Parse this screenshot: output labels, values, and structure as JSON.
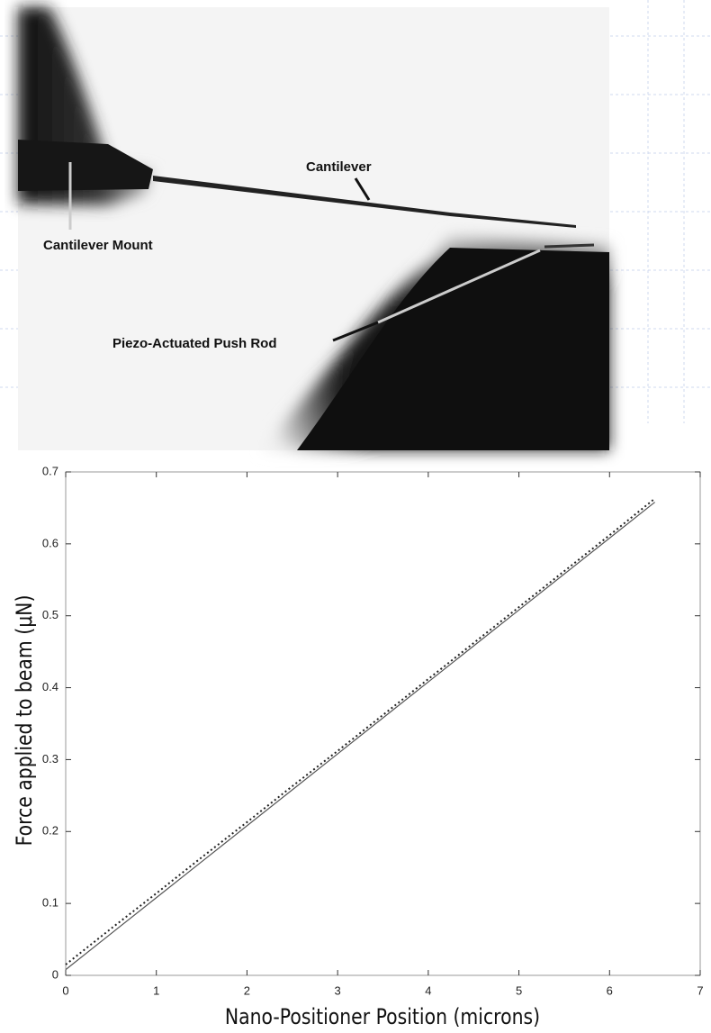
{
  "image": {
    "labels": [
      "Cantilever",
      "Cantilever Mount",
      "Piezo-Actuated Push Rod"
    ]
  },
  "chart_data": {
    "type": "line",
    "x_label": "Nano-Positioner Position (microns)",
    "y_label": "Force applied to beam (μN)",
    "x": [
      0,
      0.5,
      1,
      1.5,
      2,
      2.5,
      3,
      3.5,
      4,
      4.5,
      5,
      5.5,
      6,
      6.5
    ],
    "series": [
      {
        "color": "#222222",
        "style": "dotted",
        "values": [
          0.015,
          0.065,
          0.114,
          0.164,
          0.213,
          0.263,
          0.312,
          0.362,
          0.412,
          0.462,
          0.512,
          0.562,
          0.612,
          0.663
        ]
      },
      {
        "color": "#555555",
        "style": "solid",
        "values": [
          0.008,
          0.058,
          0.108,
          0.158,
          0.208,
          0.258,
          0.308,
          0.358,
          0.408,
          0.458,
          0.508,
          0.558,
          0.608,
          0.658
        ]
      }
    ],
    "xlim": [
      0,
      7
    ],
    "xticks": [
      0,
      1,
      2,
      3,
      4,
      5,
      6,
      7
    ],
    "ylim": [
      0,
      0.7
    ],
    "yticks": [
      0,
      0.1,
      0.2,
      0.3,
      0.4,
      0.5,
      0.6,
      0.7
    ]
  }
}
